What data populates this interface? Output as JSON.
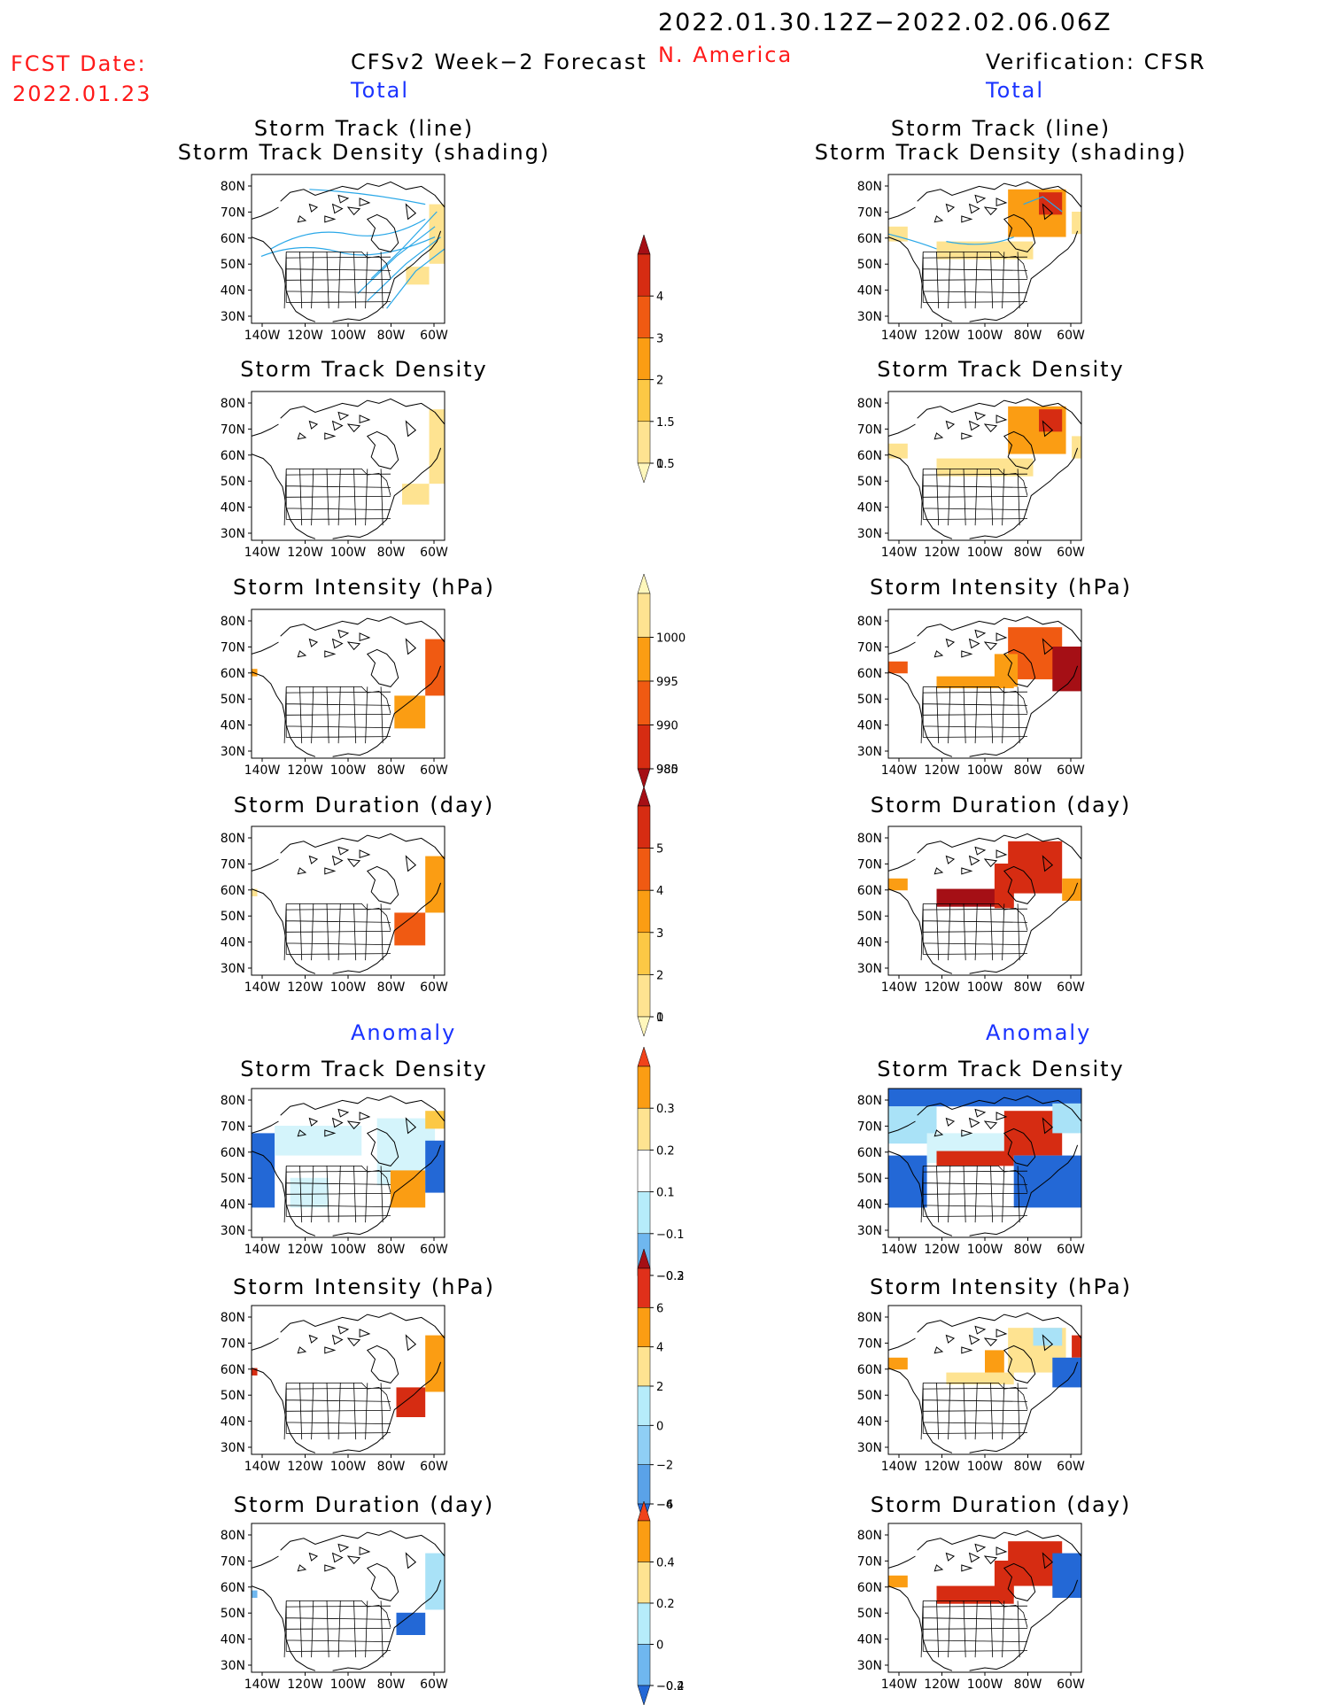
{
  "header": {
    "period": "2022.01.30.12Z−2022.02.06.06Z",
    "region": "N. America",
    "fcst_label": "FCST Date:",
    "fcst_date": "2022.01.23",
    "left_title": "CFSv2 Week−2 Forecast",
    "left_sub": "Total",
    "right_title": "Verification: CFSR",
    "right_sub": "Total",
    "anomaly_left": "Anomaly",
    "anomaly_right": "Anomaly"
  },
  "axes": {
    "lat_labels": [
      "80N",
      "70N",
      "60N",
      "50N",
      "40N",
      "30N"
    ],
    "lon_labels": [
      "140W",
      "120W",
      "100W",
      "80W",
      "60W"
    ]
  },
  "panels": {
    "left": [
      {
        "title1": "Storm Track (line)",
        "title2": "Storm Track Density (shading)"
      },
      {
        "title1": "Storm Track Density"
      },
      {
        "title1": "Storm Intensity (hPa)"
      },
      {
        "title1": "Storm Duration (day)"
      },
      {
        "title1": "Storm Track Density"
      },
      {
        "title1": "Storm Intensity (hPa)"
      },
      {
        "title1": "Storm Duration (day)"
      }
    ],
    "right": [
      {
        "title1": "Storm Track (line)",
        "title2": "Storm Track Density (shading)"
      },
      {
        "title1": "Storm Track Density"
      },
      {
        "title1": "Storm Intensity (hPa)"
      },
      {
        "title1": "Storm Duration (day)"
      },
      {
        "title1": "Storm Track Density"
      },
      {
        "title1": "Storm Intensity (hPa)"
      },
      {
        "title1": "Storm Duration (day)"
      }
    ]
  },
  "colorbars": [
    {
      "name": "density-total",
      "labels": [
        "4",
        "3",
        "2",
        "1.5",
        "1",
        "0.5"
      ],
      "colors": [
        "#a50f15",
        "#d62c12",
        "#f05a12",
        "#fb9d13",
        "#fcc845",
        "#fee391",
        "#fff7bc"
      ]
    },
    {
      "name": "intensity-total",
      "labels": [
        "1000",
        "995",
        "990",
        "985",
        "980"
      ],
      "colors": [
        "#fff7bc",
        "#fee391",
        "#fb9d13",
        "#f05a12",
        "#d62c12",
        "#a50f15"
      ]
    },
    {
      "name": "duration-total",
      "labels": [
        "5",
        "4",
        "3",
        "2",
        "1",
        "0"
      ],
      "colors": [
        "#a50f15",
        "#d62c12",
        "#f05a12",
        "#fb9d13",
        "#fcc845",
        "#fee391",
        "#fff7bc"
      ]
    },
    {
      "name": "density-anom",
      "labels": [
        "0.3",
        "0.2",
        "0.1",
        "−0.1",
        "−0.2",
        "−0.3"
      ],
      "colors": [
        "#f0431a",
        "#fb9d13",
        "#fee391",
        "#ffffff",
        "#b6ecfa",
        "#6fb7ef",
        "#2368d6"
      ]
    },
    {
      "name": "intensity-anom",
      "labels": [
        "6",
        "4",
        "2",
        "0",
        "−2",
        "−4",
        "−6"
      ],
      "colors": [
        "#a50f15",
        "#e0301a",
        "#fb9d13",
        "#fee391",
        "#b6ecfa",
        "#8fcff5",
        "#5aa2e8",
        "#2368d6"
      ]
    },
    {
      "name": "duration-anom",
      "labels": [
        "0.4",
        "0.2",
        "0",
        "−0.2",
        "−0.4"
      ],
      "colors": [
        "#f0431a",
        "#fb9d13",
        "#fee391",
        "#b6ecfa",
        "#6fb7ef",
        "#2368d6"
      ]
    }
  ]
}
